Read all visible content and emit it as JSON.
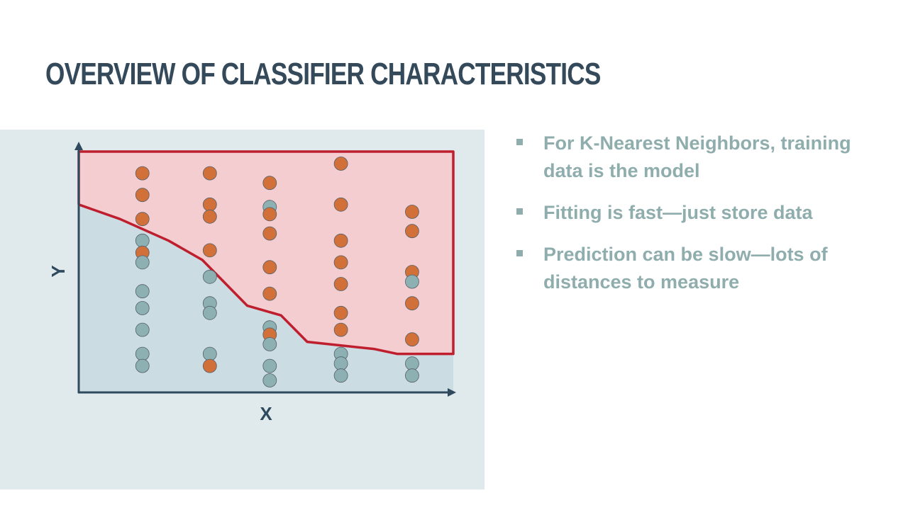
{
  "slide": {
    "title": "Overview of Classifier Characteristics"
  },
  "bullets": [
    {
      "text": "For K-Nearest Neighbors, training data is the model"
    },
    {
      "text": "Fitting is fast—just store data"
    },
    {
      "text": "Prediction can be slow—lots of distances to measure"
    }
  ],
  "diagram": {
    "x_label": "X",
    "y_label": "Y",
    "colors": {
      "orange_class": "#d2703a",
      "teal_class": "#8db0b2",
      "upper_region": "#f3cdd0",
      "lower_region": "#cbdde2",
      "boundary": "#be1e2d",
      "axis": "#2f4a5e",
      "panel": "#e0eaec"
    },
    "boundary_points": [
      [
        0,
        0.78
      ],
      [
        0.11,
        0.72
      ],
      [
        0.24,
        0.63
      ],
      [
        0.33,
        0.55
      ],
      [
        0.45,
        0.36
      ],
      [
        0.54,
        0.32
      ],
      [
        0.61,
        0.21
      ],
      [
        0.67,
        0.2
      ],
      [
        0.79,
        0.18
      ],
      [
        0.85,
        0.16
      ],
      [
        0.92,
        0.16
      ],
      [
        1,
        0.16
      ]
    ],
    "points": [
      {
        "x": 0.17,
        "y": 0.91,
        "class": "orange"
      },
      {
        "x": 0.17,
        "y": 0.82,
        "class": "orange"
      },
      {
        "x": 0.17,
        "y": 0.72,
        "class": "orange"
      },
      {
        "x": 0.17,
        "y": 0.63,
        "class": "teal"
      },
      {
        "x": 0.17,
        "y": 0.58,
        "class": "orange"
      },
      {
        "x": 0.17,
        "y": 0.54,
        "class": "teal"
      },
      {
        "x": 0.17,
        "y": 0.42,
        "class": "teal"
      },
      {
        "x": 0.17,
        "y": 0.35,
        "class": "teal"
      },
      {
        "x": 0.17,
        "y": 0.26,
        "class": "teal"
      },
      {
        "x": 0.17,
        "y": 0.16,
        "class": "teal"
      },
      {
        "x": 0.17,
        "y": 0.11,
        "class": "teal"
      },
      {
        "x": 0.35,
        "y": 0.91,
        "class": "orange"
      },
      {
        "x": 0.35,
        "y": 0.78,
        "class": "orange"
      },
      {
        "x": 0.35,
        "y": 0.73,
        "class": "orange"
      },
      {
        "x": 0.35,
        "y": 0.59,
        "class": "orange"
      },
      {
        "x": 0.35,
        "y": 0.48,
        "class": "teal"
      },
      {
        "x": 0.35,
        "y": 0.37,
        "class": "teal"
      },
      {
        "x": 0.35,
        "y": 0.33,
        "class": "teal"
      },
      {
        "x": 0.35,
        "y": 0.16,
        "class": "teal"
      },
      {
        "x": 0.35,
        "y": 0.11,
        "class": "orange"
      },
      {
        "x": 0.51,
        "y": 0.87,
        "class": "orange"
      },
      {
        "x": 0.51,
        "y": 0.77,
        "class": "teal"
      },
      {
        "x": 0.51,
        "y": 0.74,
        "class": "orange"
      },
      {
        "x": 0.51,
        "y": 0.66,
        "class": "orange"
      },
      {
        "x": 0.51,
        "y": 0.52,
        "class": "orange"
      },
      {
        "x": 0.51,
        "y": 0.41,
        "class": "orange"
      },
      {
        "x": 0.51,
        "y": 0.27,
        "class": "teal"
      },
      {
        "x": 0.51,
        "y": 0.24,
        "class": "orange"
      },
      {
        "x": 0.51,
        "y": 0.2,
        "class": "teal"
      },
      {
        "x": 0.51,
        "y": 0.11,
        "class": "teal"
      },
      {
        "x": 0.51,
        "y": 0.05,
        "class": "teal"
      },
      {
        "x": 0.7,
        "y": 0.95,
        "class": "orange"
      },
      {
        "x": 0.7,
        "y": 0.78,
        "class": "orange"
      },
      {
        "x": 0.7,
        "y": 0.63,
        "class": "orange"
      },
      {
        "x": 0.7,
        "y": 0.54,
        "class": "orange"
      },
      {
        "x": 0.7,
        "y": 0.45,
        "class": "orange"
      },
      {
        "x": 0.7,
        "y": 0.33,
        "class": "orange"
      },
      {
        "x": 0.7,
        "y": 0.26,
        "class": "orange"
      },
      {
        "x": 0.7,
        "y": 0.16,
        "class": "teal"
      },
      {
        "x": 0.7,
        "y": 0.12,
        "class": "teal"
      },
      {
        "x": 0.7,
        "y": 0.07,
        "class": "teal"
      },
      {
        "x": 0.89,
        "y": 0.75,
        "class": "orange"
      },
      {
        "x": 0.89,
        "y": 0.67,
        "class": "orange"
      },
      {
        "x": 0.89,
        "y": 0.5,
        "class": "orange"
      },
      {
        "x": 0.89,
        "y": 0.46,
        "class": "teal"
      },
      {
        "x": 0.89,
        "y": 0.37,
        "class": "orange"
      },
      {
        "x": 0.89,
        "y": 0.22,
        "class": "orange"
      },
      {
        "x": 0.89,
        "y": 0.12,
        "class": "teal"
      },
      {
        "x": 0.89,
        "y": 0.07,
        "class": "teal"
      }
    ]
  }
}
